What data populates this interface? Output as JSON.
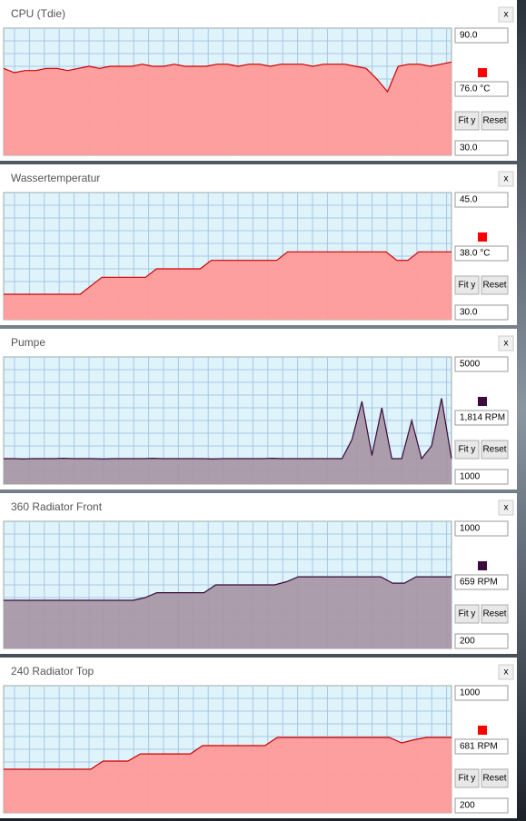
{
  "controls": {
    "fit": "Fit y",
    "reset": "Reset",
    "close": "x"
  },
  "chart_data": [
    {
      "type": "area",
      "title": "CPU (Tdie)",
      "color": "#ff9a9a",
      "line_color": "#cc0000",
      "marker_color": "#ff0000",
      "ylim": [
        30,
        90
      ],
      "yticks": [
        {
          "value": 30,
          "label": "30.0"
        },
        {
          "value": 90,
          "label": "90.0"
        }
      ],
      "current": 76,
      "current_label": "76.0 °C",
      "values": [
        71,
        69,
        70,
        70,
        71,
        71,
        70,
        71,
        72,
        71,
        72,
        72,
        72,
        73,
        72,
        72,
        73,
        72,
        72,
        72,
        73,
        73,
        72,
        73,
        73,
        72,
        73,
        73,
        73,
        72,
        73,
        73,
        73,
        72,
        71,
        66,
        60,
        72,
        73,
        73,
        72,
        73,
        74
      ]
    },
    {
      "type": "area",
      "title": "Wassertemperatur",
      "color": "#ff9a9a",
      "line_color": "#cc0000",
      "marker_color": "#ff0000",
      "ylim": [
        30,
        45
      ],
      "yticks": [
        {
          "value": 30,
          "label": "30.0"
        },
        {
          "value": 45,
          "label": "45.0"
        }
      ],
      "current": 38,
      "current_label": "38.0 °C",
      "values": [
        33,
        33,
        33,
        33,
        33,
        33,
        33,
        33,
        34,
        35,
        35,
        35,
        35,
        35,
        36,
        36,
        36,
        36,
        36,
        37,
        37,
        37,
        37,
        37,
        37,
        37,
        38,
        38,
        38,
        38,
        38,
        38,
        38,
        38,
        38,
        38,
        37,
        37,
        38,
        38,
        38,
        38
      ]
    },
    {
      "type": "area",
      "title": "Pumpe",
      "color": "#a898a8",
      "line_color": "#3a0a3a",
      "marker_color": "#3c0a3c",
      "ylim": [
        1000,
        5000
      ],
      "yticks": [
        1000,
        5000
      ],
      "current": 1814,
      "current_label": "1,814 RPM",
      "values": [
        1800,
        1800,
        1790,
        1800,
        1800,
        1800,
        1810,
        1800,
        1800,
        1800,
        1790,
        1800,
        1800,
        1800,
        1800,
        1810,
        1800,
        1800,
        1800,
        1800,
        1800,
        1790,
        1800,
        1800,
        1800,
        1800,
        1800,
        1810,
        1800,
        1800,
        1800,
        1800,
        1800,
        1800,
        1800,
        2400,
        3600,
        1900,
        3400,
        1800,
        1800,
        3000,
        1800,
        2200,
        3700,
        1800
      ]
    },
    {
      "type": "area",
      "title": "360 Radiator Front",
      "color": "#a898a8",
      "line_color": "#3a0a3a",
      "marker_color": "#3c0a3c",
      "ylim": [
        200,
        1000
      ],
      "yticks": [
        200,
        1000
      ],
      "current": 659,
      "current_label": "659 RPM",
      "values": [
        503,
        503,
        503,
        503,
        503,
        503,
        503,
        503,
        503,
        503,
        503,
        503,
        520,
        551,
        551,
        551,
        551,
        551,
        600,
        600,
        600,
        600,
        600,
        600,
        620,
        651,
        651,
        651,
        651,
        651,
        651,
        651,
        651,
        611,
        611,
        651,
        651,
        651,
        651
      ]
    },
    {
      "type": "area",
      "title": "240 Radiator Top",
      "color": "#ff9a9a",
      "line_color": "#cc0000",
      "marker_color": "#ff0000",
      "ylim": [
        200,
        1000
      ],
      "yticks": [
        200,
        1000
      ],
      "current": 681,
      "current_label": "681 RPM",
      "values": [
        474,
        474,
        474,
        474,
        474,
        474,
        474,
        474,
        526,
        526,
        526,
        571,
        571,
        571,
        571,
        571,
        623,
        623,
        623,
        623,
        623,
        623,
        674,
        674,
        674,
        674,
        674,
        674,
        674,
        674,
        674,
        674,
        640,
        660,
        674,
        674,
        674
      ]
    }
  ]
}
